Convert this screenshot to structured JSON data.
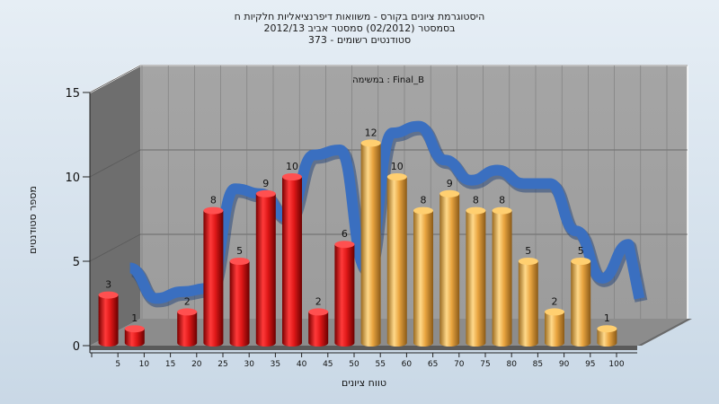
{
  "chart_data": {
    "type": "bar",
    "title_lines": [
      "היסטוגרמת ציונים בקורס - משוואות דיפרנציאליות חלקיות ח",
      "בסמסטר  (02/2012)  סמסטר אביב 2012/13",
      "373 - סטודנטים רשומים"
    ],
    "xlabel": "טווח ציונים",
    "ylabel": "מספר סטודנטים",
    "legend_text": "במשימה : Final_B",
    "legend_placement": "top-center",
    "ylim": [
      0,
      15
    ],
    "yticks": [
      "0",
      "5",
      "10",
      "15"
    ],
    "grid": true,
    "categories": [
      "5",
      "10",
      "15",
      "20",
      "25",
      "30",
      "35",
      "40",
      "45",
      "50",
      "55",
      "60",
      "65",
      "70",
      "75",
      "80",
      "85",
      "90",
      "95",
      "100"
    ],
    "values": [
      3,
      1,
      0,
      2,
      8,
      5,
      9,
      10,
      2,
      6,
      12,
      10,
      8,
      9,
      8,
      8,
      5,
      2,
      5,
      1
    ],
    "value_labels": [
      "3",
      "1",
      "",
      "2",
      "8",
      "5",
      "9",
      "10",
      "2",
      "6",
      "12",
      "10",
      "8",
      "9",
      "8",
      "8",
      "5",
      "2",
      "5",
      "1"
    ],
    "bar_colors": [
      "red",
      "red",
      "red",
      "red",
      "red",
      "red",
      "red",
      "red",
      "red",
      "red",
      "orange",
      "orange",
      "orange",
      "orange",
      "orange",
      "orange",
      "orange",
      "orange",
      "orange",
      "orange"
    ],
    "curve_values": [
      3.8,
      2,
      2.4,
      2.6,
      8.5,
      8.2,
      6.8,
      10.5,
      10.8,
      3.8,
      11.8,
      12.2,
      10.2,
      9,
      9.6,
      8.8,
      8.8,
      6,
      3.2,
      5.2
    ]
  },
  "colors": {
    "red": "#e01818",
    "orange": "#e9a540",
    "curve": "#3a6fc0",
    "wall": "#9a9a9a",
    "left_wall": "#6e6e6e",
    "floor": "#8a8a8a"
  }
}
